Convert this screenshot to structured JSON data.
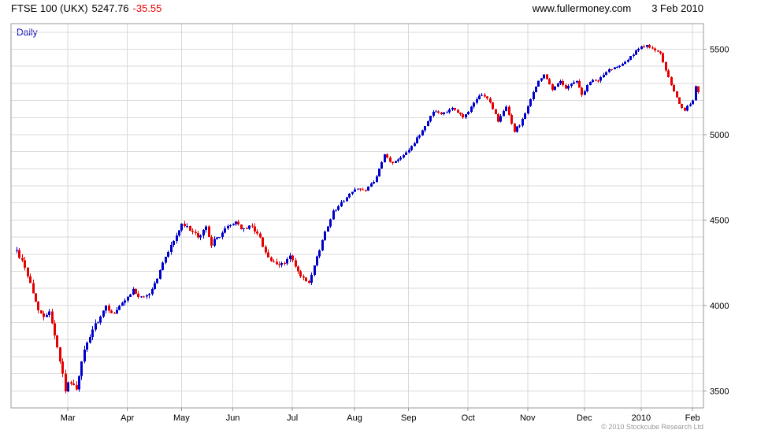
{
  "header": {
    "symbol_title": "FTSE 100 (UKX)",
    "last_price": "5247.76",
    "change": "-35.55",
    "site": "www.fullermoney.com",
    "date": "3 Feb 2010"
  },
  "legend": {
    "timeframe": "Daily"
  },
  "footer": {
    "copyright": "© 2010 Stockcube Research Ltd"
  },
  "chart_data": {
    "type": "candlestick",
    "title": "FTSE 100 (UKX) 5247.76 -35.55",
    "timeframe": "Daily",
    "xlabel": "",
    "ylabel": "",
    "y_axis_side": "right",
    "legend_position": "top-left",
    "grid": true,
    "grid_step": 100,
    "y_range": [
      3400,
      5650
    ],
    "y_ticks": [
      3500,
      4000,
      4500,
      5000,
      5500
    ],
    "x_tick_labels": [
      "Mar",
      "Apr",
      "May",
      "Jun",
      "Jul",
      "Aug",
      "Sep",
      "Oct",
      "Nov",
      "Dec",
      "2010",
      "Feb"
    ],
    "x_tick_days": [
      19,
      41,
      61,
      80,
      102,
      125,
      145,
      167,
      189,
      210,
      231,
      250
    ],
    "total_days": 253,
    "up_color": "#0000cc",
    "down_color": "#e60000",
    "grid_color": "#d9d9d9",
    "border_color": "#9a9a9a",
    "last_close": 5247.76,
    "change": -35.55,
    "price_path_anchors": [
      [
        0,
        4320
      ],
      [
        3,
        4230
      ],
      [
        7,
        4020
      ],
      [
        10,
        3920
      ],
      [
        12,
        3980
      ],
      [
        16,
        3680
      ],
      [
        18,
        3510
      ],
      [
        20,
        3560
      ],
      [
        22,
        3500
      ],
      [
        25,
        3740
      ],
      [
        28,
        3860
      ],
      [
        30,
        3900
      ],
      [
        33,
        3990
      ],
      [
        36,
        3950
      ],
      [
        38,
        3990
      ],
      [
        41,
        4040
      ],
      [
        43,
        4090
      ],
      [
        46,
        4040
      ],
      [
        49,
        4070
      ],
      [
        52,
        4160
      ],
      [
        55,
        4290
      ],
      [
        58,
        4380
      ],
      [
        61,
        4470
      ],
      [
        64,
        4450
      ],
      [
        67,
        4390
      ],
      [
        70,
        4460
      ],
      [
        72,
        4360
      ],
      [
        75,
        4410
      ],
      [
        78,
        4460
      ],
      [
        81,
        4490
      ],
      [
        84,
        4440
      ],
      [
        87,
        4470
      ],
      [
        90,
        4390
      ],
      [
        93,
        4280
      ],
      [
        96,
        4230
      ],
      [
        99,
        4250
      ],
      [
        101,
        4290
      ],
      [
        104,
        4190
      ],
      [
        108,
        4120
      ],
      [
        110,
        4230
      ],
      [
        114,
        4430
      ],
      [
        117,
        4550
      ],
      [
        120,
        4600
      ],
      [
        123,
        4650
      ],
      [
        126,
        4690
      ],
      [
        129,
        4670
      ],
      [
        133,
        4750
      ],
      [
        136,
        4880
      ],
      [
        139,
        4830
      ],
      [
        142,
        4870
      ],
      [
        144,
        4900
      ],
      [
        147,
        4950
      ],
      [
        151,
        5050
      ],
      [
        154,
        5140
      ],
      [
        157,
        5120
      ],
      [
        161,
        5160
      ],
      [
        165,
        5100
      ],
      [
        168,
        5160
      ],
      [
        172,
        5240
      ],
      [
        175,
        5190
      ],
      [
        178,
        5080
      ],
      [
        181,
        5160
      ],
      [
        184,
        5020
      ],
      [
        186,
        5060
      ],
      [
        189,
        5160
      ],
      [
        192,
        5290
      ],
      [
        195,
        5350
      ],
      [
        198,
        5260
      ],
      [
        201,
        5320
      ],
      [
        203,
        5270
      ],
      [
        207,
        5320
      ],
      [
        209,
        5230
      ],
      [
        212,
        5310
      ],
      [
        215,
        5320
      ],
      [
        219,
        5380
      ],
      [
        223,
        5410
      ],
      [
        226,
        5440
      ],
      [
        230,
        5500
      ],
      [
        233,
        5530
      ],
      [
        236,
        5490
      ],
      [
        238,
        5470
      ],
      [
        241,
        5330
      ],
      [
        244,
        5210
      ],
      [
        247,
        5140
      ],
      [
        250,
        5200
      ],
      [
        252,
        5247.76
      ]
    ]
  }
}
